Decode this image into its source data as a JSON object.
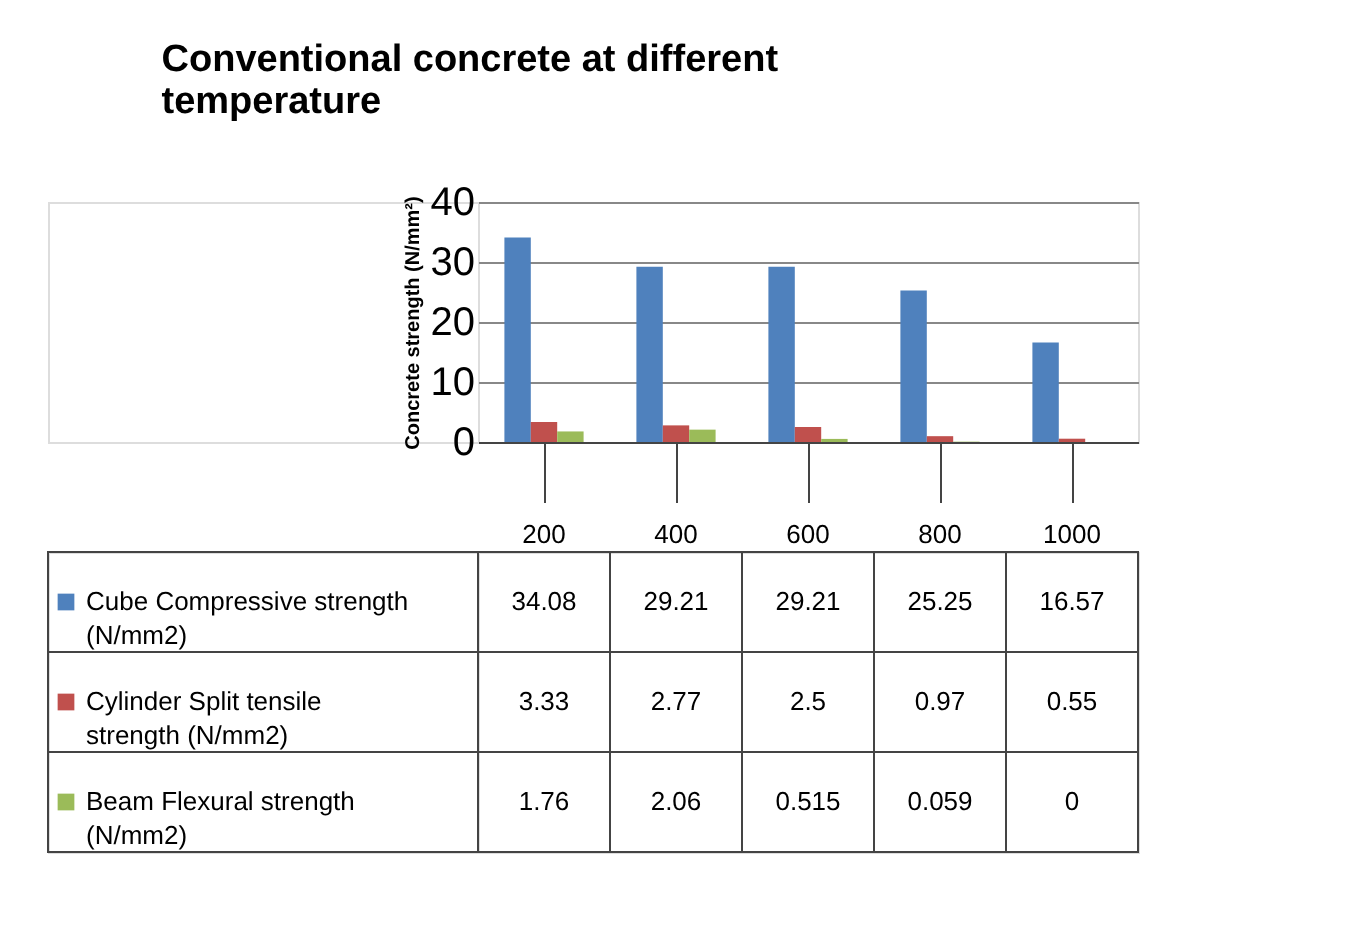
{
  "chart_data": {
    "type": "bar",
    "title": "Conventional concrete at different temperature",
    "ylabel": "Concrete strength (N/mm²)",
    "categories": [
      "200",
      "400",
      "600",
      "800",
      "1000"
    ],
    "series": [
      {
        "name": "Cube Compressive strength  (N/mm2)",
        "color": "#4f81bd",
        "values": [
          34.08,
          29.21,
          29.21,
          25.25,
          16.57
        ]
      },
      {
        "name": "Cylinder Split tensile strength (N/mm2)",
        "color": "#c0504d",
        "values": [
          3.33,
          2.77,
          2.5,
          0.97,
          0.55
        ]
      },
      {
        "name": "Beam Flexural strength (N/mm2)",
        "color": "#9bbb59",
        "values": [
          1.76,
          2.06,
          0.515,
          0.059,
          0
        ]
      }
    ],
    "ylim": [
      0,
      40
    ],
    "yticks": [
      0,
      10,
      20,
      30,
      40
    ],
    "grid": "y",
    "legend": "bottom",
    "data_labels": true
  }
}
